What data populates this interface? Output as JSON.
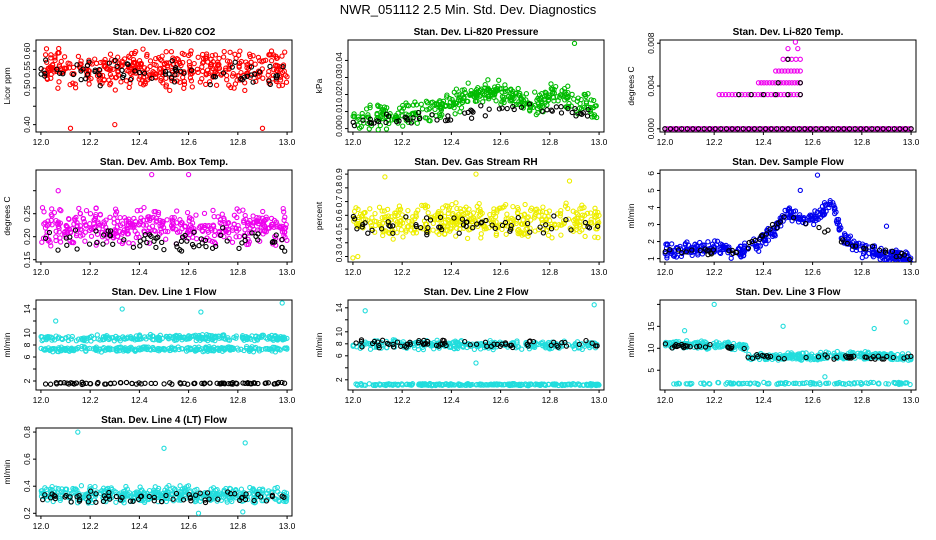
{
  "page_title": "NWR_051112  2.5 Min. Std. Dev. Diagnostics",
  "chart_data": [
    {
      "type": "scatter",
      "title": "Stan. Dev. Li-820 CO2",
      "xlabel": "",
      "ylabel": "Licor ppm",
      "xlim": [
        11.98,
        13.02
      ],
      "ylim": [
        0.38,
        0.63
      ],
      "xticks": [
        "12.0",
        "12.2",
        "12.4",
        "12.6",
        "12.8",
        "13.0"
      ],
      "yticks": [
        "0.40",
        "0.45",
        "0.50",
        "0.55",
        "0.60"
      ],
      "yticks_shown": [
        "0.40",
        "0.50",
        "0.55",
        "0.60"
      ],
      "series": [
        {
          "color": "#ff0000",
          "style": "band",
          "bands": [
            {
              "center": 0.55,
              "spread": 0.06
            }
          ],
          "n": 420,
          "seed": 11,
          "outliers": [
            [
              12.12,
              0.39
            ],
            [
              12.3,
              0.4
            ],
            [
              12.9,
              0.39
            ]
          ]
        },
        {
          "color": "#000000",
          "style": "band",
          "bands": [
            {
              "center": 0.54,
              "spread": 0.04
            }
          ],
          "n": 70,
          "seed": 12
        }
      ]
    },
    {
      "type": "scatter",
      "title": "Stan. Dev. Li-820 Pressure",
      "xlabel": "",
      "ylabel": "kPa",
      "xlim": [
        11.98,
        13.02
      ],
      "ylim": [
        -0.002,
        0.052
      ],
      "xticks": [
        "12.0",
        "12.2",
        "12.4",
        "12.6",
        "12.8",
        "13.0"
      ],
      "yticks": [
        "0.00",
        "0.01",
        "0.02",
        "0.03",
        "0.04"
      ],
      "series": [
        {
          "color": "#00bb00",
          "style": "trend",
          "points": [
            [
              12.0,
              0.006
            ],
            [
              12.2,
              0.008
            ],
            [
              12.35,
              0.012
            ],
            [
              12.45,
              0.018
            ],
            [
              12.55,
              0.022
            ],
            [
              12.65,
              0.02
            ],
            [
              12.75,
              0.014
            ],
            [
              12.82,
              0.022
            ],
            [
              12.9,
              0.016
            ],
            [
              13.0,
              0.01
            ]
          ],
          "spread": 0.008,
          "n": 380,
          "seed": 21,
          "outliers": [
            [
              12.9,
              0.05
            ],
            [
              12.02,
              0.002
            ]
          ]
        },
        {
          "color": "#000000",
          "style": "trend",
          "points": [
            [
              12.0,
              0.004
            ],
            [
              12.3,
              0.006
            ],
            [
              12.5,
              0.01
            ],
            [
              12.7,
              0.012
            ],
            [
              12.9,
              0.01
            ],
            [
              13.0,
              0.006
            ]
          ],
          "spread": 0.004,
          "n": 60,
          "seed": 22
        }
      ]
    },
    {
      "type": "scatter",
      "title": "Stan. Dev. Li-820 Temp.",
      "xlabel": "",
      "ylabel": "degrees C",
      "xlim": [
        11.98,
        13.02
      ],
      "ylim": [
        -0.0003,
        0.0083
      ],
      "xticks": [
        "12.0",
        "12.2",
        "12.4",
        "12.6",
        "12.8",
        "13.0"
      ],
      "yticks": [
        "0.000",
        "0.004",
        "0.008"
      ],
      "series": [
        {
          "color": "#ee00ee",
          "style": "levels",
          "rows": [
            [
              0.0,
              12.0,
              13.0,
              120
            ],
            [
              0.0032,
              12.22,
              12.55,
              26
            ],
            [
              0.0043,
              12.38,
              12.55,
              16
            ],
            [
              0.0054,
              12.45,
              12.55,
              9
            ],
            [
              0.0065,
              12.48,
              12.55,
              5
            ],
            [
              0.0075,
              12.5,
              12.54,
              2
            ]
          ],
          "extra": [
            [
              12.53,
              0.0081
            ]
          ]
        },
        {
          "color": "#000000",
          "style": "levels",
          "rows": [
            [
              0.0,
              12.0,
              13.0,
              45
            ],
            [
              0.0032,
              12.3,
              12.55,
              6
            ],
            [
              0.0043,
              12.46,
              12.55,
              2
            ],
            [
              0.0065,
              12.5,
              12.53,
              1
            ]
          ]
        }
      ]
    },
    {
      "type": "scatter",
      "title": "Stan. Dev. Amb. Box Temp.",
      "xlabel": "",
      "ylabel": "degrees C",
      "xlim": [
        11.98,
        13.02
      ],
      "ylim": [
        0.145,
        0.345
      ],
      "xticks": [
        "12.0",
        "12.2",
        "12.4",
        "12.6",
        "12.8",
        "13.0"
      ],
      "yticks": [
        "0.15",
        "0.20",
        "0.25",
        "0.30"
      ],
      "yticks_shown": [
        "0.15",
        "0.20",
        "0.25"
      ],
      "series": [
        {
          "color": "#ee00ee",
          "style": "band",
          "bands": [
            {
              "center": 0.22,
              "spread": 0.045
            }
          ],
          "n": 420,
          "seed": 41,
          "outliers": [
            [
              12.45,
              0.335
            ],
            [
              12.6,
              0.335
            ],
            [
              12.07,
              0.3
            ]
          ]
        },
        {
          "color": "#000000",
          "style": "band",
          "bands": [
            {
              "center": 0.19,
              "spread": 0.03
            }
          ],
          "n": 70,
          "seed": 42
        }
      ]
    },
    {
      "type": "scatter",
      "title": "Stan. Dev. Gas Stream RH",
      "xlabel": "",
      "ylabel": "percent",
      "xlim": [
        11.98,
        13.02
      ],
      "ylim": [
        0.26,
        0.93
      ],
      "xticks": [
        "12.0",
        "12.2",
        "12.4",
        "12.6",
        "12.8",
        "13.0"
      ],
      "yticks": [
        "0.3",
        "0.4",
        "0.5",
        "0.6",
        "0.7",
        "0.8",
        "0.9"
      ],
      "series": [
        {
          "color": "#eeee00",
          "style": "band",
          "bands": [
            {
              "center": 0.56,
              "spread": 0.14
            }
          ],
          "n": 430,
          "seed": 51,
          "outliers": [
            [
              12.0,
              0.29
            ],
            [
              12.02,
              0.3
            ],
            [
              12.13,
              0.88
            ],
            [
              12.5,
              0.9
            ],
            [
              12.88,
              0.85
            ]
          ]
        },
        {
          "color": "#000000",
          "style": "band",
          "bands": [
            {
              "center": 0.53,
              "spread": 0.08
            }
          ],
          "n": 60,
          "seed": 52
        }
      ]
    },
    {
      "type": "scatter",
      "title": "Stan. Dev. Sample Flow",
      "xlabel": "",
      "ylabel": "ml/min",
      "xlim": [
        11.98,
        13.02
      ],
      "ylim": [
        0.8,
        6.2
      ],
      "xticks": [
        "12.0",
        "12.2",
        "12.4",
        "12.6",
        "12.8",
        "13.0"
      ],
      "yticks": [
        "1",
        "2",
        "3",
        "4",
        "5",
        "6"
      ],
      "series": [
        {
          "color": "#0000ee",
          "style": "trend",
          "points": [
            [
              12.0,
              1.5
            ],
            [
              12.2,
              1.6
            ],
            [
              12.3,
              1.4
            ],
            [
              12.4,
              2.0
            ],
            [
              12.45,
              2.8
            ],
            [
              12.5,
              3.8
            ],
            [
              12.55,
              3.2
            ],
            [
              12.62,
              3.4
            ],
            [
              12.68,
              4.5
            ],
            [
              12.72,
              2.2
            ],
            [
              12.8,
              1.5
            ],
            [
              12.9,
              1.2
            ],
            [
              13.0,
              1.0
            ]
          ],
          "spread": 0.5,
          "n": 420,
          "seed": 61,
          "outliers": [
            [
              12.62,
              5.9
            ],
            [
              12.55,
              5.0
            ],
            [
              12.9,
              2.9
            ]
          ]
        },
        {
          "color": "#000000",
          "style": "trend",
          "points": [
            [
              12.0,
              1.5
            ],
            [
              12.3,
              1.4
            ],
            [
              12.5,
              3.5
            ],
            [
              12.6,
              3.0
            ],
            [
              12.72,
              2.0
            ],
            [
              13.0,
              1.0
            ]
          ],
          "spread": 0.25,
          "n": 55,
          "seed": 62
        }
      ]
    },
    {
      "type": "scatter",
      "title": "Stan. Dev. Line 1 Flow",
      "xlabel": "",
      "ylabel": "ml/min",
      "xlim": [
        11.98,
        13.02
      ],
      "ylim": [
        0.5,
        15.5
      ],
      "xticks": [
        "12.0",
        "12.2",
        "12.4",
        "12.6",
        "12.8",
        "13.0"
      ],
      "yticks": [
        "2",
        "4",
        "6",
        "8",
        "10",
        "12",
        "14"
      ],
      "yticks_shown": [
        "2",
        "6",
        "8",
        "10",
        "14"
      ],
      "series": [
        {
          "color": "#22dddd",
          "style": "band",
          "bands": [
            {
              "center": 9.2,
              "spread": 0.6
            },
            {
              "center": 7.3,
              "spread": 0.5
            }
          ],
          "n": 500,
          "seed": 71,
          "outliers": [
            [
              12.06,
              12.0
            ],
            [
              12.33,
              14.0
            ],
            [
              12.65,
              13.5
            ],
            [
              12.98,
              15.0
            ]
          ]
        },
        {
          "color": "#000000",
          "style": "band",
          "bands": [
            {
              "center": 1.6,
              "spread": 0.2
            }
          ],
          "n": 90,
          "seed": 72
        }
      ]
    },
    {
      "type": "scatter",
      "title": "Stan. Dev. Line 2 Flow",
      "xlabel": "",
      "ylabel": "ml/min",
      "xlim": [
        11.98,
        13.02
      ],
      "ylim": [
        0.3,
        15.3
      ],
      "xticks": [
        "12.0",
        "12.2",
        "12.4",
        "12.6",
        "12.8",
        "13.0"
      ],
      "yticks": [
        "2",
        "4",
        "6",
        "8",
        "10",
        "12",
        "14"
      ],
      "yticks_shown": [
        "2",
        "6",
        "8",
        "10",
        "14"
      ],
      "series": [
        {
          "color": "#22dddd",
          "style": "band",
          "bands": [
            {
              "center": 7.8,
              "spread": 0.9
            },
            {
              "center": 1.2,
              "spread": 0.2
            }
          ],
          "n": 520,
          "seed": 81,
          "outliers": [
            [
              12.05,
              13.5
            ],
            [
              12.5,
              4.8
            ],
            [
              12.98,
              14.5
            ]
          ]
        },
        {
          "color": "#000000",
          "style": "band",
          "bands": [
            {
              "center": 8.0,
              "spread": 0.8
            }
          ],
          "n": 70,
          "seed": 82
        }
      ]
    },
    {
      "type": "scatter",
      "title": "Stan. Dev. Line 3 Flow",
      "xlabel": "",
      "ylabel": "ml/min",
      "xlim": [
        11.98,
        13.02
      ],
      "ylim": [
        0.5,
        21
      ],
      "xticks": [
        "12.0",
        "12.2",
        "12.4",
        "12.6",
        "12.8",
        "13.0"
      ],
      "yticks": [
        "5",
        "10",
        "15",
        "20"
      ],
      "yticks_shown": [
        "5",
        "10",
        "15"
      ],
      "series": [
        {
          "color": "#22dddd",
          "style": "trend",
          "points": [
            [
              12.0,
              11.0
            ],
            [
              12.33,
              10.5
            ],
            [
              12.34,
              8.0
            ],
            [
              12.6,
              8.2
            ],
            [
              12.8,
              8.5
            ],
            [
              13.0,
              7.8
            ]
          ],
          "spread": 1.0,
          "n": 420,
          "seed": 91,
          "outliers": [
            [
              12.08,
              14.0
            ],
            [
              12.2,
              20.0
            ],
            [
              12.48,
              15.0
            ],
            [
              12.85,
              14.5
            ],
            [
              12.98,
              16.0
            ],
            [
              12.65,
              3.5
            ]
          ]
        },
        {
          "color": "#22dddd",
          "style": "band",
          "bands": [
            {
              "center": 2.0,
              "spread": 0.3
            }
          ],
          "n": 110,
          "seed": 93
        },
        {
          "color": "#000000",
          "style": "trend",
          "points": [
            [
              12.0,
              10.5
            ],
            [
              12.33,
              10.0
            ],
            [
              12.34,
              8.0
            ],
            [
              13.0,
              8.0
            ]
          ],
          "spread": 0.7,
          "n": 60,
          "seed": 92
        }
      ]
    },
    {
      "type": "scatter",
      "title": "Stan. Dev. Line 4 (LT) Flow",
      "xlabel": "",
      "ylabel": "ml/min",
      "xlim": [
        11.98,
        13.02
      ],
      "ylim": [
        0.18,
        0.83
      ],
      "xticks": [
        "12.0",
        "12.2",
        "12.4",
        "12.6",
        "12.8",
        "13.0"
      ],
      "yticks": [
        "0.2",
        "0.4",
        "0.6",
        "0.8"
      ],
      "series": [
        {
          "color": "#22dddd",
          "style": "band",
          "bands": [
            {
              "center": 0.34,
              "spread": 0.07
            }
          ],
          "n": 440,
          "seed": 101,
          "outliers": [
            [
              12.15,
              0.8
            ],
            [
              12.5,
              0.68
            ],
            [
              12.83,
              0.72
            ],
            [
              12.64,
              0.2
            ],
            [
              12.82,
              0.21
            ]
          ]
        },
        {
          "color": "#000000",
          "style": "band",
          "bands": [
            {
              "center": 0.32,
              "spread": 0.05
            }
          ],
          "n": 70,
          "seed": 102
        }
      ]
    }
  ]
}
